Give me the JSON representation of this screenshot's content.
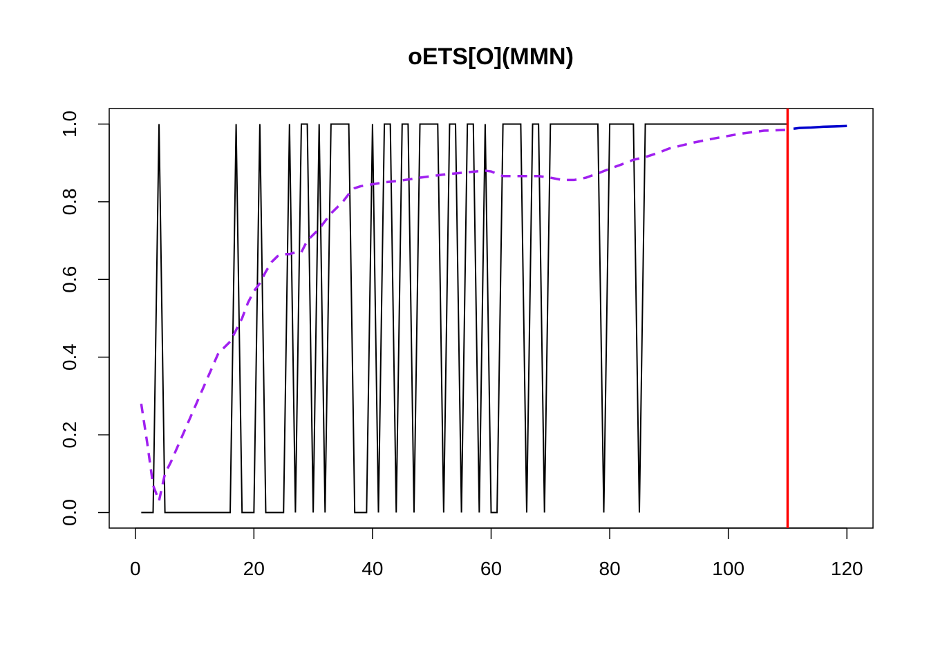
{
  "chart_data": {
    "type": "line",
    "title": "oETS[O](MMN)",
    "xlabel": "",
    "ylabel": "",
    "xlim": [
      -4.4,
      124.4
    ],
    "ylim": [
      -0.04,
      1.04
    ],
    "x_ticks": [
      "0",
      "20",
      "40",
      "60",
      "80",
      "100",
      "120"
    ],
    "y_ticks": [
      "0.0",
      "0.2",
      "0.4",
      "0.6",
      "0.8",
      "1.0"
    ],
    "grid": false,
    "legend": "none",
    "series": [
      {
        "style": "solid",
        "color": "#000000",
        "x": [
          1,
          2,
          3,
          4,
          5,
          6,
          7,
          8,
          9,
          10,
          11,
          12,
          13,
          14,
          15,
          16,
          17,
          18,
          19,
          20,
          21,
          22,
          23,
          24,
          25,
          26,
          27,
          28,
          29,
          30,
          31,
          32,
          33,
          34,
          35,
          36,
          37,
          38,
          39,
          40,
          41,
          42,
          43,
          44,
          45,
          46,
          47,
          48,
          49,
          50,
          51,
          52,
          53,
          54,
          55,
          56,
          57,
          58,
          59,
          60,
          61,
          62,
          63,
          64,
          65,
          66,
          67,
          68,
          69,
          70,
          71,
          72,
          73,
          74,
          75,
          76,
          77,
          78,
          79,
          80,
          81,
          82,
          83,
          84,
          85,
          86,
          87,
          88,
          89,
          90,
          91,
          92,
          93,
          94,
          95,
          96,
          97,
          98,
          99,
          100,
          101,
          102,
          103,
          104,
          105,
          106,
          107,
          108,
          109,
          110
        ],
        "values": [
          0,
          0,
          0,
          1,
          0,
          0,
          0,
          0,
          0,
          0,
          0,
          0,
          0,
          0,
          0,
          0,
          1,
          0,
          0,
          0,
          1,
          0,
          0,
          0,
          0,
          1,
          0,
          1,
          1,
          0,
          1,
          0,
          1,
          1,
          1,
          1,
          0,
          0,
          0,
          1,
          0,
          1,
          1,
          0,
          1,
          1,
          0,
          1,
          1,
          1,
          1,
          0,
          1,
          1,
          0,
          1,
          1,
          0,
          1,
          0,
          0,
          1,
          1,
          1,
          1,
          0,
          1,
          1,
          0,
          1,
          1,
          1,
          1,
          1,
          1,
          1,
          1,
          1,
          0,
          1,
          1,
          1,
          1,
          1,
          0,
          1,
          1,
          1,
          1,
          1,
          1,
          1,
          1,
          1,
          1,
          1,
          1,
          1,
          1,
          1,
          1,
          1,
          1,
          1,
          1,
          1,
          1,
          1,
          1,
          1
        ]
      },
      {
        "style": "dashed",
        "color": "#a020f0",
        "x": [
          1,
          2,
          3,
          4,
          5,
          6,
          8,
          10,
          12,
          14,
          16,
          17,
          18,
          19,
          20,
          21,
          22,
          23,
          24,
          25,
          26,
          27,
          28,
          29,
          30,
          31,
          32,
          33,
          34,
          35,
          36,
          37,
          38,
          40,
          42,
          45,
          48,
          52,
          56,
          59,
          60,
          61,
          62,
          65,
          68,
          70,
          72,
          74,
          76,
          78,
          80,
          82,
          84,
          86,
          88,
          90,
          94,
          98,
          102,
          106,
          110
        ],
        "values": [
          0.28,
          0.18,
          0.07,
          0.03,
          0.1,
          0.13,
          0.2,
          0.27,
          0.34,
          0.41,
          0.44,
          0.47,
          0.5,
          0.54,
          0.57,
          0.59,
          0.62,
          0.645,
          0.66,
          0.665,
          0.665,
          0.67,
          0.67,
          0.7,
          0.715,
          0.73,
          0.75,
          0.77,
          0.785,
          0.8,
          0.82,
          0.835,
          0.84,
          0.845,
          0.85,
          0.855,
          0.862,
          0.87,
          0.876,
          0.88,
          0.878,
          0.872,
          0.866,
          0.866,
          0.866,
          0.862,
          0.856,
          0.856,
          0.862,
          0.873,
          0.885,
          0.896,
          0.908,
          0.915,
          0.925,
          0.937,
          0.952,
          0.964,
          0.975,
          0.983,
          0.985
        ]
      },
      {
        "style": "solid",
        "color": "#0000cd",
        "x": [
          111,
          112,
          114,
          116,
          118,
          120
        ],
        "values": [
          0.988,
          0.99,
          0.991,
          0.993,
          0.994,
          0.995
        ]
      }
    ],
    "vline": {
      "x": 110,
      "color": "#ff0000"
    }
  }
}
